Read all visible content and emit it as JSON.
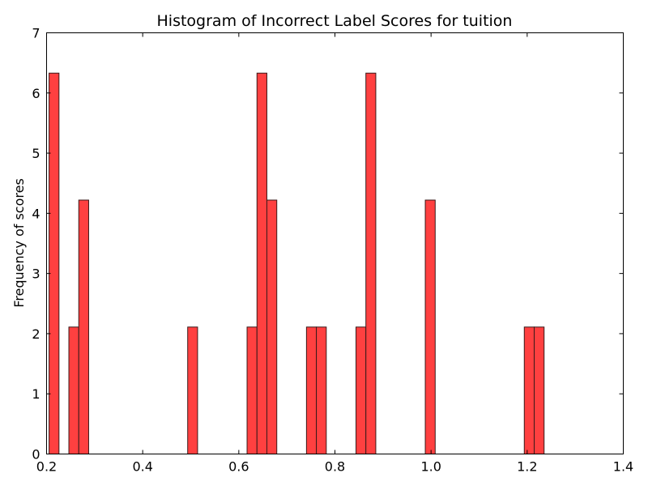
{
  "chart_data": {
    "type": "bar",
    "title": "Histogram of Incorrect Label Scores for tuition",
    "xlabel": "",
    "ylabel": "Frequency of scores",
    "xlim": [
      0.2,
      1.4
    ],
    "ylim": [
      0,
      7
    ],
    "xticks": [
      "0.2",
      "0.4",
      "0.6",
      "0.8",
      "1.0",
      "1.2",
      "1.4"
    ],
    "yticks": [
      "0",
      "1",
      "2",
      "3",
      "4",
      "5",
      "6",
      "7"
    ],
    "bar_color": "#ff4040",
    "edge_color": "#3a1a1a",
    "bin_width": 0.0206,
    "bars": [
      {
        "x": 0.2052,
        "value": 6.33
      },
      {
        "x": 0.2464,
        "value": 2.11
      },
      {
        "x": 0.267,
        "value": 4.22
      },
      {
        "x": 0.4936,
        "value": 2.11
      },
      {
        "x": 0.6172,
        "value": 2.11
      },
      {
        "x": 0.6378,
        "value": 6.33
      },
      {
        "x": 0.6584,
        "value": 4.22
      },
      {
        "x": 0.7408,
        "value": 2.11
      },
      {
        "x": 0.7614,
        "value": 2.11
      },
      {
        "x": 0.8438,
        "value": 2.11
      },
      {
        "x": 0.8644,
        "value": 6.33
      },
      {
        "x": 0.988,
        "value": 4.22
      },
      {
        "x": 1.194,
        "value": 2.11
      },
      {
        "x": 1.2146,
        "value": 2.11
      }
    ]
  }
}
